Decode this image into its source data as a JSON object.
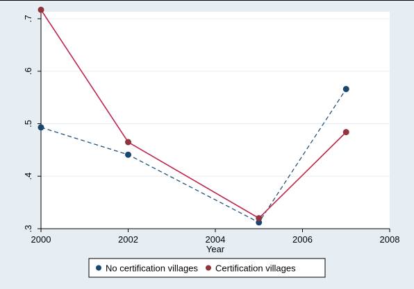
{
  "chart_data": {
    "type": "line",
    "title": "",
    "xlabel": "Year",
    "ylabel": "",
    "x_ticks": [
      "2000",
      "2002",
      "2004",
      "2006",
      "2008"
    ],
    "y_ticks": [
      ".3",
      ".4",
      ".5",
      ".6",
      ".7"
    ],
    "xlim": [
      2000,
      2008
    ],
    "ylim": [
      0.3,
      0.7
    ],
    "grid": "horizontal",
    "legend_position": "bottom",
    "x": [
      2000,
      2002,
      2005,
      2007
    ],
    "series": [
      {
        "name": "No certification villages",
        "style": "dashed",
        "color": "#1f4e79",
        "marker_color": "#1a476f",
        "values": [
          0.493,
          0.441,
          0.312,
          0.566
        ]
      },
      {
        "name": "Certification villages",
        "style": "solid",
        "color": "#c0234a",
        "marker_color": "#90353b",
        "values": [
          0.717,
          0.465,
          0.32,
          0.484
        ]
      }
    ],
    "colors": {
      "outer_background": "#e6eef4",
      "plot_background": "#ffffff",
      "grid": "#e8eef2",
      "legend_border": "#000000"
    }
  }
}
